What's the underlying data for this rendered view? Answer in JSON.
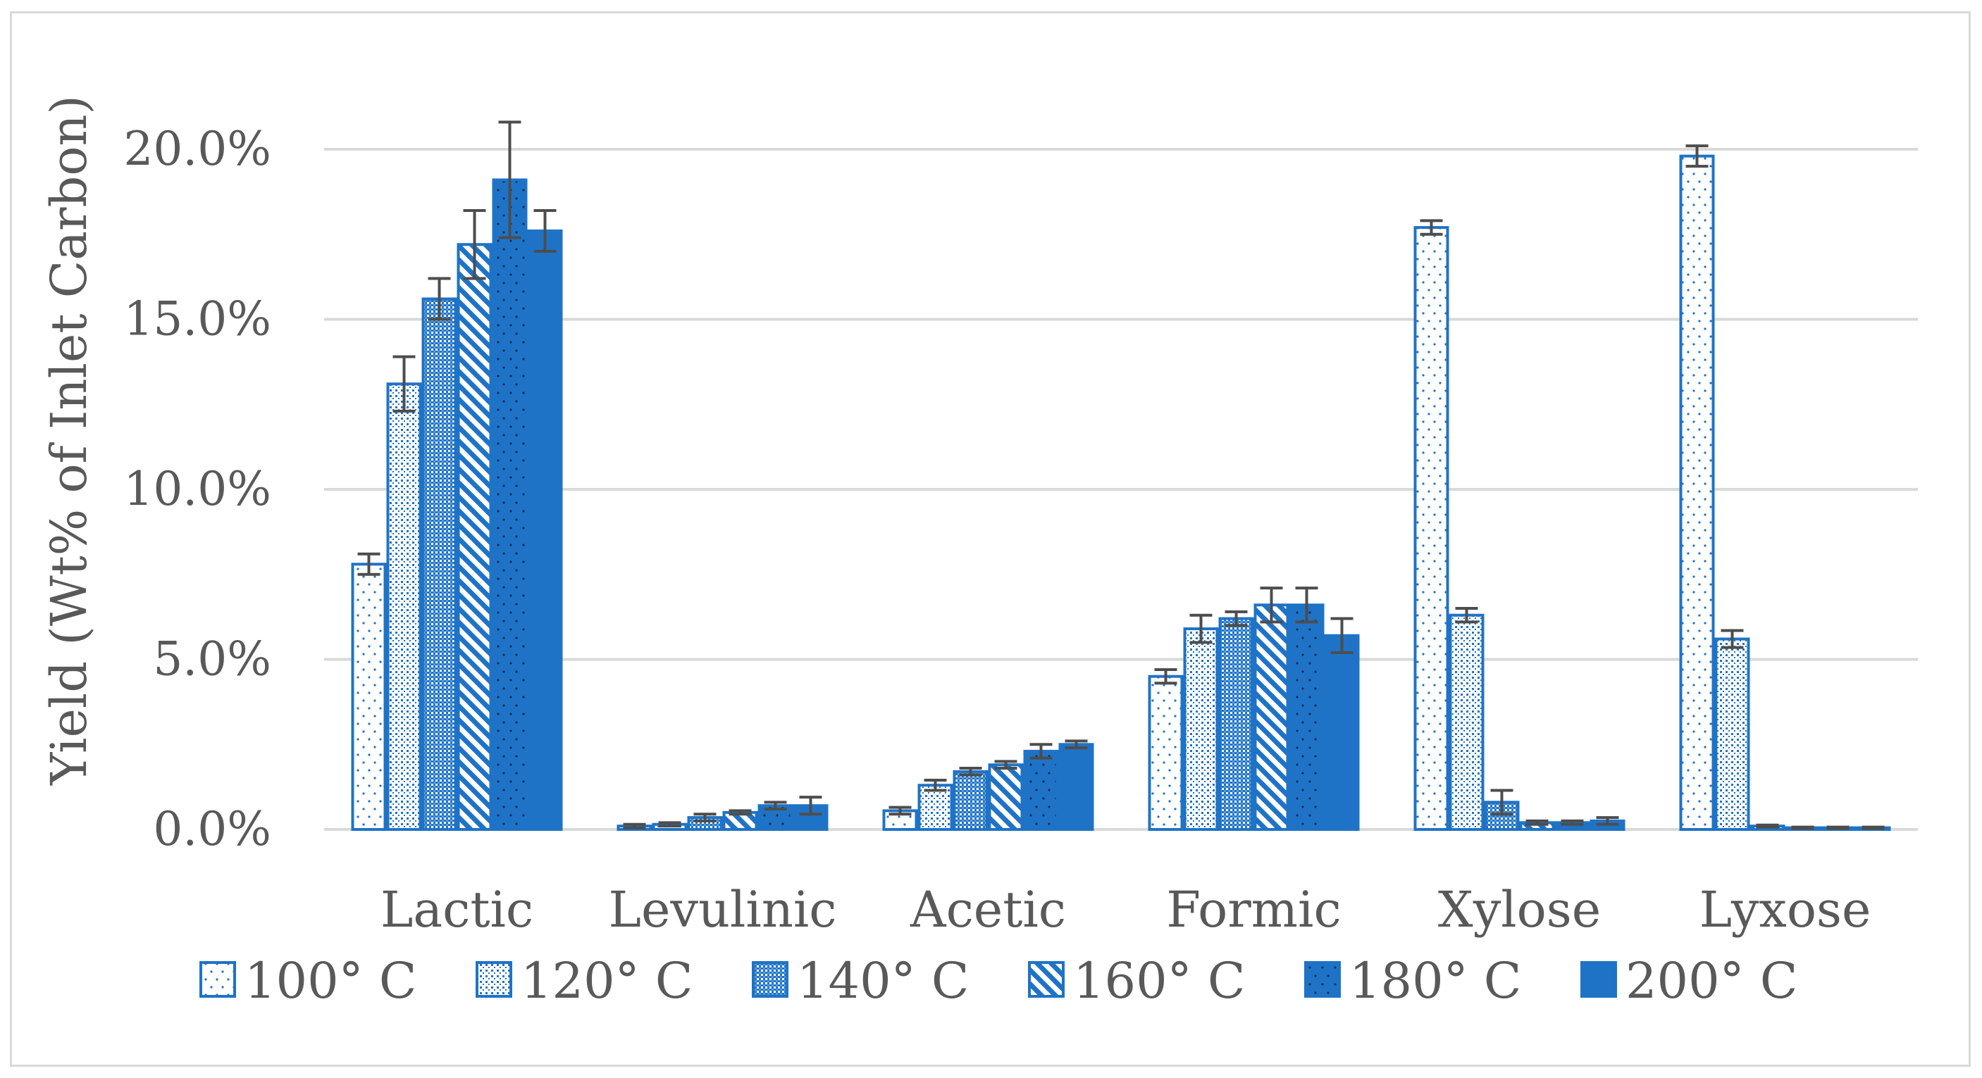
{
  "chart_data": {
    "type": "bar",
    "title": "",
    "xlabel": "",
    "ylabel": "Yield (Wt% of Inlet Carbon)",
    "ylim": [
      0,
      20
    ],
    "y_ticks": [
      "0.0%",
      "5.0%",
      "10.0%",
      "15.0%",
      "20.0%"
    ],
    "y_tick_values": [
      0,
      5,
      10,
      15,
      20
    ],
    "grid": true,
    "legend_position": "bottom",
    "categories": [
      "Lactic",
      "Levulinic",
      "Acetic",
      "Formic",
      "Xylose",
      "Lyxose"
    ],
    "series": [
      {
        "name": "100° C",
        "pattern": "dots-sparse",
        "values": [
          7.8,
          0.1,
          0.55,
          4.5,
          17.7,
          19.8
        ],
        "errors": [
          0.3,
          0.05,
          0.1,
          0.2,
          0.2,
          0.3
        ]
      },
      {
        "name": "120° C",
        "pattern": "dots-dense",
        "values": [
          13.1,
          0.15,
          1.3,
          5.9,
          6.3,
          5.6
        ],
        "errors": [
          0.8,
          0.05,
          0.15,
          0.4,
          0.2,
          0.25
        ]
      },
      {
        "name": "140° C",
        "pattern": "grid-dense",
        "values": [
          15.6,
          0.35,
          1.7,
          6.2,
          0.8,
          0.1
        ],
        "errors": [
          0.6,
          0.1,
          0.1,
          0.2,
          0.35,
          0.03
        ]
      },
      {
        "name": "160° C",
        "pattern": "diagonal",
        "values": [
          17.2,
          0.5,
          1.9,
          6.6,
          0.2,
          0.05
        ],
        "errors": [
          1.0,
          0.05,
          0.1,
          0.5,
          0.05,
          0.02
        ]
      },
      {
        "name": "180° C",
        "pattern": "solid-dots",
        "values": [
          19.1,
          0.7,
          2.3,
          6.6,
          0.2,
          0.05
        ],
        "errors": [
          1.7,
          0.1,
          0.2,
          0.5,
          0.05,
          0.02
        ]
      },
      {
        "name": "200° C",
        "pattern": "solid",
        "values": [
          17.6,
          0.7,
          2.5,
          5.7,
          0.25,
          0.05
        ],
        "errors": [
          0.6,
          0.25,
          0.1,
          0.5,
          0.1,
          0.02
        ]
      }
    ],
    "colors": {
      "bar": "#1f73c6",
      "error": "#4d4d4d",
      "grid": "#d9d9d9",
      "text": "#595959"
    }
  }
}
